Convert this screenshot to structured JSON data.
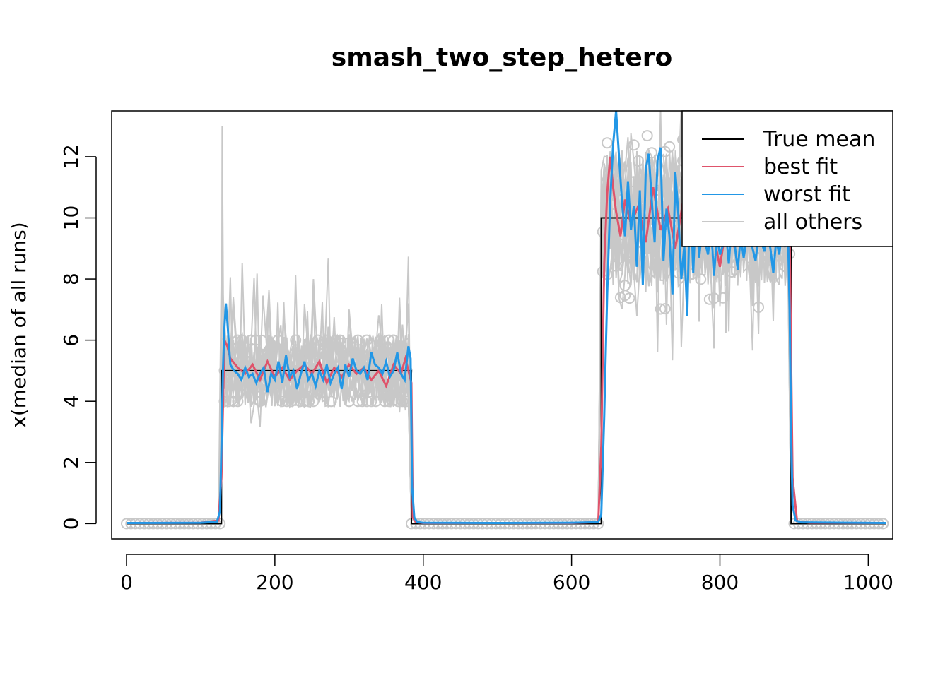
{
  "chart_data": {
    "type": "line",
    "title": "smash_two_step_hetero",
    "xlabel": "",
    "ylabel": "x(median of all runs)",
    "xlim": [
      -20,
      1033
    ],
    "ylim": [
      -0.5,
      13.5
    ],
    "xticks": [
      0,
      200,
      400,
      600,
      800,
      1000
    ],
    "yticks": [
      0,
      2,
      4,
      6,
      8,
      10,
      12
    ],
    "grid": false,
    "legend_position": "top-right",
    "segments": [
      {
        "x0": 0,
        "x1": 128,
        "mean": 0
      },
      {
        "x0": 128,
        "x1": 384,
        "mean": 5
      },
      {
        "x0": 384,
        "x1": 640,
        "mean": 0
      },
      {
        "x0": 640,
        "x1": 896,
        "mean": 10
      },
      {
        "x0": 896,
        "x1": 1024,
        "mean": 0
      }
    ],
    "series": [
      {
        "name": "True mean",
        "color": "#000000",
        "x": [
          0,
          128,
          128,
          384,
          384,
          640,
          640,
          896,
          896,
          1024
        ],
        "y": [
          0,
          0,
          5,
          5,
          0,
          0,
          10,
          10,
          0,
          0
        ]
      },
      {
        "name": "best fit",
        "color": "#DF536B",
        "x": [
          0,
          100,
          124,
          128,
          132,
          136,
          140,
          150,
          160,
          170,
          180,
          190,
          200,
          210,
          220,
          230,
          240,
          250,
          260,
          270,
          280,
          290,
          300,
          310,
          320,
          330,
          340,
          350,
          360,
          370,
          376,
          380,
          384,
          386,
          390,
          400,
          500,
          600,
          636,
          640,
          644,
          648,
          652,
          656,
          660,
          666,
          672,
          680,
          690,
          700,
          710,
          720,
          730,
          740,
          750,
          760,
          770,
          780,
          790,
          800,
          810,
          820,
          830,
          840,
          850,
          860,
          870,
          880,
          890,
          894,
          898,
          904,
          920,
          1024
        ],
        "y": [
          0.02,
          0.03,
          0.1,
          1.5,
          6.0,
          5.8,
          5.4,
          5.1,
          4.9,
          5.2,
          4.7,
          5.3,
          4.8,
          5.1,
          4.7,
          5.0,
          5.2,
          4.9,
          5.3,
          4.6,
          5.1,
          4.8,
          5.2,
          4.9,
          5.1,
          4.7,
          5.0,
          4.5,
          5.2,
          4.9,
          5.4,
          5.0,
          4.6,
          0.2,
          0.05,
          0.02,
          0.02,
          0.02,
          0.05,
          2.5,
          8.5,
          10.8,
          12.0,
          11.0,
          10.2,
          9.4,
          10.6,
          9.8,
          10.4,
          9.2,
          11.0,
          9.6,
          10.3,
          9.0,
          10.5,
          9.8,
          9.3,
          10.1,
          9.6,
          8.4,
          10.0,
          9.0,
          10.2,
          9.5,
          9.8,
          9.1,
          10.0,
          9.6,
          9.9,
          9.5,
          1.5,
          0.08,
          0.03,
          0.02
        ]
      },
      {
        "name": "worst fit",
        "color": "#2297E6",
        "x": [
          0,
          100,
          122,
          126,
          128,
          130,
          132,
          134,
          136,
          140,
          145,
          150,
          155,
          160,
          165,
          170,
          175,
          180,
          185,
          190,
          195,
          200,
          205,
          210,
          215,
          220,
          225,
          230,
          235,
          240,
          245,
          250,
          255,
          260,
          265,
          270,
          275,
          280,
          285,
          290,
          295,
          300,
          305,
          310,
          315,
          320,
          325,
          330,
          335,
          340,
          345,
          350,
          355,
          360,
          365,
          370,
          375,
          380,
          383,
          385,
          388,
          392,
          400,
          500,
          600,
          636,
          640,
          644,
          648,
          652,
          656,
          660,
          664,
          668,
          672,
          676,
          680,
          684,
          688,
          692,
          696,
          700,
          704,
          708,
          712,
          716,
          720,
          724,
          728,
          732,
          736,
          740,
          744,
          748,
          752,
          756,
          760,
          764,
          768,
          772,
          776,
          780,
          784,
          788,
          792,
          796,
          800,
          804,
          808,
          812,
          816,
          820,
          824,
          828,
          832,
          836,
          840,
          844,
          848,
          852,
          856,
          860,
          864,
          868,
          872,
          876,
          880,
          884,
          888,
          892,
          894,
          896,
          898,
          902,
          910,
          1024
        ],
        "y": [
          0.02,
          0.03,
          0.06,
          0.4,
          2.5,
          5.0,
          6.4,
          7.2,
          6.6,
          5.2,
          5.0,
          4.9,
          4.7,
          5.1,
          4.8,
          4.9,
          4.6,
          4.9,
          5.1,
          4.3,
          4.9,
          4.7,
          5.3,
          4.6,
          5.5,
          4.8,
          5.0,
          4.4,
          4.9,
          5.3,
          4.7,
          4.9,
          4.5,
          5.0,
          4.7,
          5.2,
          4.6,
          4.9,
          5.1,
          4.4,
          5.2,
          4.8,
          5.4,
          5.0,
          4.9,
          5.1,
          4.7,
          5.6,
          5.2,
          5.1,
          4.9,
          5.3,
          4.8,
          5.0,
          5.6,
          4.9,
          4.7,
          5.8,
          5.4,
          1.2,
          0.2,
          0.05,
          0.03,
          0.02,
          0.03,
          0.05,
          0.3,
          3.5,
          7.5,
          10.5,
          12.4,
          13.5,
          12.0,
          10.5,
          9.4,
          11.2,
          9.6,
          10.4,
          8.4,
          10.9,
          7.8,
          11.6,
          12.1,
          10.6,
          9.2,
          11.9,
          12.3,
          8.6,
          10.3,
          9.4,
          7.5,
          11.5,
          10.1,
          8.0,
          9.1,
          6.8,
          11.2,
          8.2,
          10.6,
          8.7,
          9.6,
          9.2,
          8.8,
          9.7,
          8.1,
          9.4,
          8.8,
          9.1,
          9.6,
          8.5,
          9.9,
          9.1,
          8.3,
          9.4,
          8.7,
          9.3,
          9.8,
          9.0,
          8.6,
          9.4,
          9.2,
          8.9,
          9.5,
          9.0,
          8.2,
          9.3,
          8.8,
          9.6,
          9.1,
          9.3,
          7.0,
          3.0,
          0.6,
          0.1,
          0.04,
          0.02
        ]
      },
      {
        "name": "all others",
        "color": "#C8C8C8",
        "x": [],
        "y": []
      }
    ]
  }
}
